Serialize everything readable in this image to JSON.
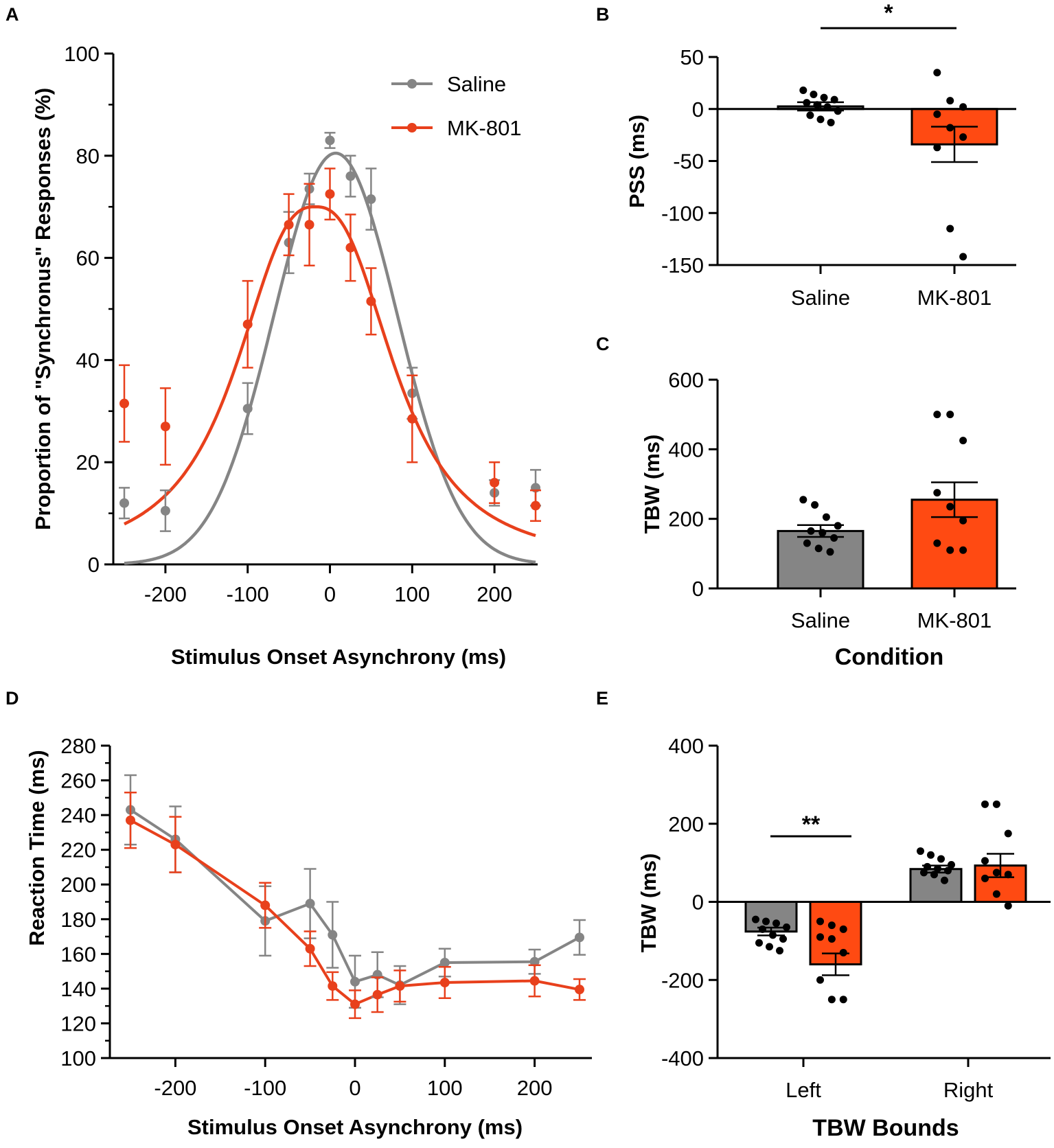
{
  "colors": {
    "saline": "#858585",
    "mk801": "#e8401c",
    "mk801_bar": "#ff4a12",
    "saline_bar": "#858585",
    "axis": "#000000"
  },
  "chart_data": [
    {
      "id": "A",
      "panel_label": "A",
      "type": "scatter",
      "xlabel": "Stimulus Onset Asynchrony (ms)",
      "ylabel": "Proportion of \"Synchronus\" Responses (%)",
      "xlim": [
        -260,
        260
      ],
      "ylim": [
        0,
        100
      ],
      "xticks": [
        -200,
        -100,
        0,
        100,
        200
      ],
      "xtick_labels": [
        "-200",
        "-100",
        "0",
        "100",
        "200"
      ],
      "yticks": [
        0,
        20,
        40,
        60,
        80,
        100
      ],
      "ytick_labels": [
        "0",
        "20",
        "40",
        "60",
        "80",
        "100"
      ],
      "legend": [
        "Saline",
        "MK-801"
      ],
      "series": [
        {
          "name": "Saline",
          "x": [
            -250,
            -200,
            -100,
            -50,
            -25,
            0,
            25,
            50,
            100,
            200,
            250
          ],
          "y": [
            12,
            10.5,
            30.5,
            63,
            73.5,
            83,
            76,
            71.5,
            33.5,
            14,
            15
          ],
          "err": [
            3,
            4,
            5,
            6,
            3,
            1.5,
            4,
            6,
            5,
            2.5,
            3.5
          ],
          "fit": {
            "model": "gaussian",
            "amplitude": 80.5,
            "center": 7,
            "sigma": 75,
            "baseline": 0
          }
        },
        {
          "name": "MK-801",
          "x": [
            -250,
            -200,
            -100,
            -50,
            -25,
            0,
            25,
            50,
            100,
            200,
            250
          ],
          "y": [
            31.5,
            27,
            47,
            66.5,
            66.5,
            72.5,
            62,
            51.5,
            28.5,
            16,
            11.5
          ],
          "err": [
            7.5,
            7.5,
            8.5,
            6,
            8,
            5,
            6.5,
            6.5,
            8.5,
            4,
            3
          ],
          "fit": {
            "model": "gaussian-quadratic",
            "amplitude": 70,
            "center": -18,
            "a": 11.2,
            "b": 4.3
          }
        }
      ]
    },
    {
      "id": "B",
      "panel_label": "B",
      "type": "bar",
      "ylabel": "PSS (ms)",
      "categories": [
        "Saline",
        "MK-801"
      ],
      "ylim": [
        -150,
        50
      ],
      "yticks": [
        50,
        0,
        -50,
        -100,
        -150
      ],
      "ytick_labels": [
        "50",
        "0",
        "-50",
        "-100",
        "-150"
      ],
      "values": [
        2.5,
        -34
      ],
      "sem": [
        4,
        17
      ],
      "points": [
        [
          18,
          14,
          11,
          9,
          6,
          4,
          2,
          -2,
          -6,
          -10,
          -13
        ],
        [
          35,
          8,
          2,
          -5,
          -18,
          -27,
          -37,
          -115,
          -142
        ]
      ],
      "significance": "*"
    },
    {
      "id": "C",
      "panel_label": "C",
      "type": "bar",
      "ylabel": "TBW (ms)",
      "xlabel": "Condition",
      "categories": [
        "Saline",
        "MK-801"
      ],
      "ylim": [
        0,
        600
      ],
      "yticks": [
        0,
        200,
        400,
        600
      ],
      "ytick_labels": [
        "0",
        "200",
        "400",
        "600"
      ],
      "values": [
        165,
        255
      ],
      "sem": [
        17,
        50
      ],
      "points": [
        [
          255,
          240,
          205,
          180,
          165,
          160,
          145,
          130,
          115,
          105
        ],
        [
          500,
          500,
          425,
          275,
          235,
          195,
          130,
          110,
          110
        ]
      ]
    },
    {
      "id": "D",
      "panel_label": "D",
      "type": "line",
      "xlabel": "Stimulus Onset Asynchrony (ms)",
      "ylabel": "Reaction Time (ms)",
      "xlim": [
        -265,
        265
      ],
      "ylim": [
        100,
        280
      ],
      "xticks": [
        -200,
        -100,
        0,
        100,
        200
      ],
      "xtick_labels": [
        "-200",
        "-100",
        "0",
        "100",
        "200"
      ],
      "yticks": [
        100,
        120,
        140,
        160,
        180,
        200,
        220,
        240,
        260,
        280
      ],
      "ytick_labels": [
        "100",
        "120",
        "140",
        "160",
        "180",
        "200",
        "220",
        "240",
        "260",
        "280"
      ],
      "series": [
        {
          "name": "Saline",
          "x": [
            -250,
            -200,
            -100,
            -50,
            -25,
            0,
            25,
            50,
            100,
            200,
            250
          ],
          "y": [
            243,
            226,
            179,
            189,
            171,
            144,
            148,
            142,
            155,
            155.5,
            169.5
          ],
          "err": [
            20,
            19,
            20,
            20,
            19,
            15,
            13,
            11,
            8,
            7,
            10
          ]
        },
        {
          "name": "MK-801",
          "x": [
            -250,
            -200,
            -100,
            -50,
            -25,
            0,
            25,
            50,
            100,
            200,
            250
          ],
          "y": [
            237,
            223,
            188,
            163,
            141.5,
            131,
            136.5,
            141.5,
            143.5,
            144.5,
            139.5
          ],
          "err": [
            16,
            16,
            13,
            10,
            8,
            8,
            10,
            9,
            9,
            9,
            6
          ]
        }
      ]
    },
    {
      "id": "E",
      "panel_label": "E",
      "type": "bar",
      "ylabel": "TBW (ms)",
      "xlabel": "TBW Bounds",
      "categories": [
        "Left",
        "Right"
      ],
      "ylim": [
        -400,
        400
      ],
      "yticks": [
        400,
        200,
        0,
        -200,
        -400
      ],
      "ytick_labels": [
        "400",
        "200",
        "0",
        "-200",
        "-400"
      ],
      "series": [
        {
          "name": "Saline",
          "values": [
            -76,
            84
          ],
          "sem": [
            10,
            9
          ],
          "points": [
            [
              -45,
              -50,
              -55,
              -65,
              -70,
              -85,
              -95,
              -105,
              -115,
              -125
            ],
            [
              130,
              120,
              110,
              95,
              90,
              85,
              80,
              75,
              70,
              55
            ]
          ]
        },
        {
          "name": "MK-801",
          "values": [
            -160,
            93
          ],
          "sem": [
            28,
            30
          ],
          "points": [
            [
              -50,
              -60,
              -70,
              -90,
              -95,
              -130,
              -200,
              -250,
              -250
            ],
            [
              250,
              250,
              175,
              105,
              75,
              70,
              60,
              20,
              -10
            ]
          ]
        }
      ],
      "significance": "**"
    }
  ]
}
